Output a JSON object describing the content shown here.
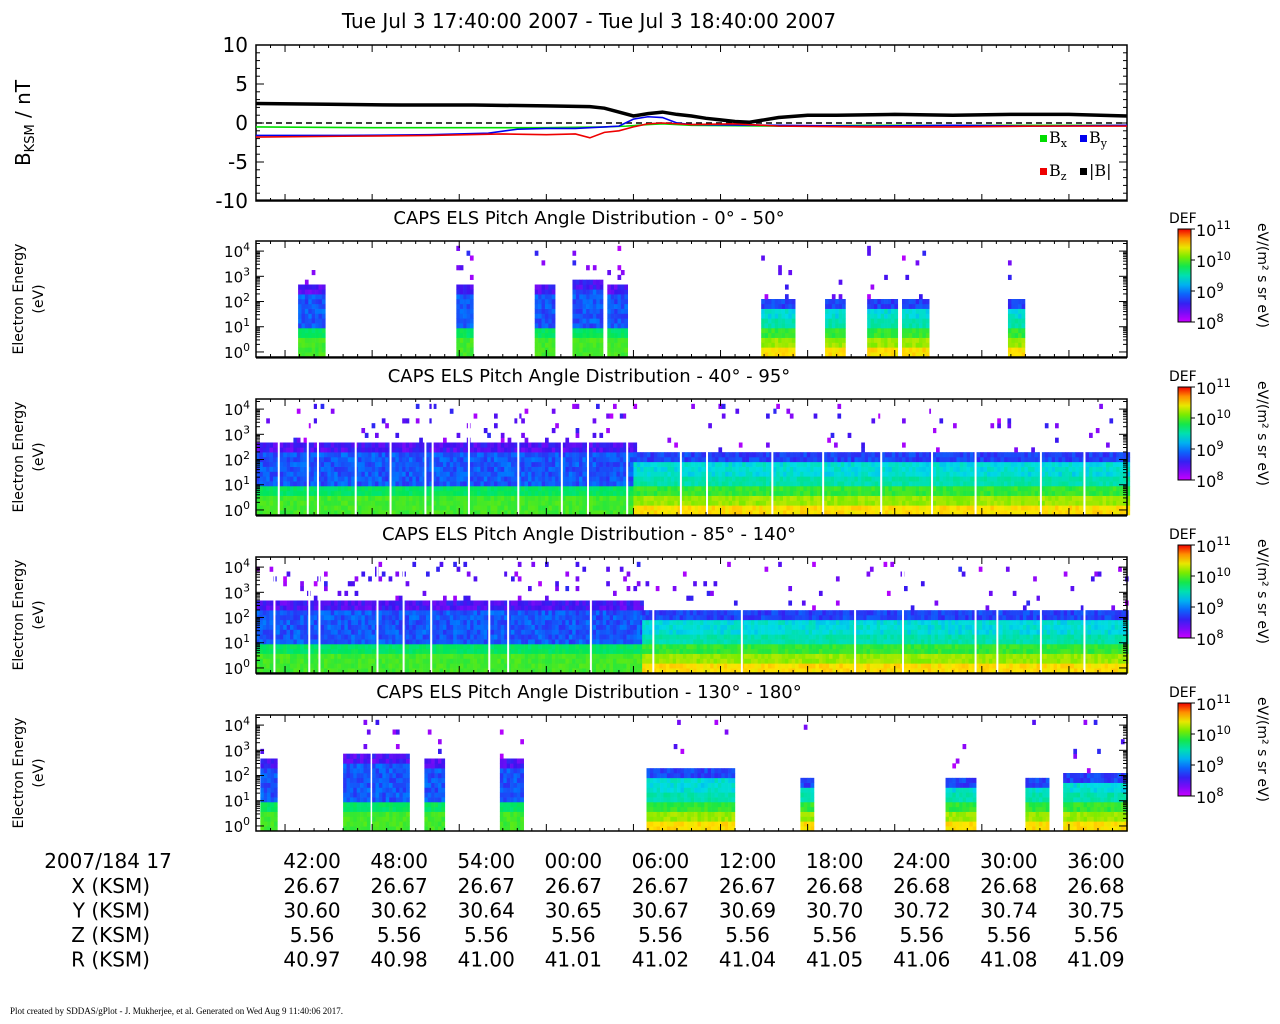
{
  "chart_data": {
    "type": "multi-panel",
    "title": "Tue Jul 3 17:40:00 2007 - Tue Jul 3 18:40:00 2007",
    "time_axis": {
      "label": "2007/184 17",
      "ticks": [
        "42:00",
        "48:00",
        "54:00",
        "00:00",
        "06:00",
        "12:00",
        "18:00",
        "24:00",
        "30:00",
        "36:00"
      ],
      "tick_minutes": [
        2,
        8,
        14,
        20,
        26,
        32,
        38,
        44,
        50,
        56
      ],
      "range_minutes": [
        0,
        60
      ]
    },
    "ephemeris": [
      {
        "label": "X (KSM)",
        "values": [
          "26.67",
          "26.67",
          "26.67",
          "26.67",
          "26.67",
          "26.67",
          "26.68",
          "26.68",
          "26.68",
          "26.68"
        ]
      },
      {
        "label": "Y (KSM)",
        "values": [
          "30.60",
          "30.62",
          "30.64",
          "30.65",
          "30.67",
          "30.69",
          "30.70",
          "30.72",
          "30.74",
          "30.75"
        ]
      },
      {
        "label": "Z (KSM)",
        "values": [
          "5.56",
          "5.56",
          "5.56",
          "5.56",
          "5.56",
          "5.56",
          "5.56",
          "5.56",
          "5.56",
          "5.56"
        ]
      },
      {
        "label": "R (KSM)",
        "values": [
          "40.97",
          "40.98",
          "41.00",
          "41.01",
          "41.02",
          "41.04",
          "41.05",
          "41.06",
          "41.08",
          "41.09"
        ]
      }
    ],
    "mag": {
      "type": "line",
      "ylabel_main": "B",
      "ylabel_sub": "KSM",
      "ylabel_unit": " / nT",
      "ylim": [
        -10,
        10
      ],
      "yticks": [
        10,
        5,
        0,
        -5,
        -10
      ],
      "zero_line": "dashed",
      "legend": [
        {
          "key": "Bx",
          "main": "B",
          "sub": "x"
        },
        {
          "key": "By",
          "main": "B",
          "sub": "y"
        },
        {
          "key": "Bz",
          "main": "B",
          "sub": "z"
        },
        {
          "key": "Bmag",
          "main": "|B|",
          "sub": ""
        }
      ],
      "series": [
        {
          "name": "Bx",
          "color": "#00dd00",
          "x": [
            0,
            8,
            14,
            20,
            24,
            25.5,
            27,
            28,
            30,
            36,
            42,
            48,
            54,
            60
          ],
          "y": [
            -0.5,
            -0.6,
            -0.6,
            -0.6,
            -0.5,
            -0.4,
            -0.2,
            -0.1,
            -0.3,
            -0.4,
            -0.3,
            -0.3,
            -0.3,
            -0.3
          ]
        },
        {
          "name": "By",
          "color": "#0000ee",
          "x": [
            0,
            6,
            12,
            16,
            18,
            20,
            22,
            24,
            25,
            26,
            27,
            28,
            29,
            30,
            36,
            42,
            48,
            54,
            60
          ],
          "y": [
            -1.6,
            -1.6,
            -1.5,
            -1.3,
            -0.8,
            -0.7,
            -0.7,
            -0.5,
            -0.4,
            0.5,
            0.8,
            0.7,
            0,
            -0.2,
            -0.3,
            -0.4,
            -0.3,
            -0.4,
            -0.3
          ]
        },
        {
          "name": "Bz",
          "color": "#ee0000",
          "x": [
            0,
            6,
            12,
            17,
            20,
            22,
            23,
            24,
            25,
            26,
            27,
            28,
            30,
            33,
            36,
            42,
            48,
            54,
            60
          ],
          "y": [
            -1.8,
            -1.7,
            -1.6,
            -1.4,
            -1.5,
            -1.4,
            -1.9,
            -1.2,
            -1.0,
            -0.5,
            -0.1,
            0,
            -0.2,
            -0.1,
            -0.4,
            -0.5,
            -0.5,
            -0.4,
            -0.4
          ]
        },
        {
          "name": "|B|",
          "color": "#000000",
          "x": [
            0,
            5,
            10,
            15,
            20,
            23,
            24,
            25,
            26,
            27,
            28,
            29,
            30,
            31,
            32,
            33,
            34,
            36,
            38,
            40,
            44,
            48,
            52,
            56,
            60
          ],
          "y": [
            2.5,
            2.4,
            2.3,
            2.3,
            2.2,
            2.1,
            1.9,
            1.4,
            0.9,
            1.2,
            1.4,
            1.1,
            0.9,
            0.6,
            0.4,
            0.2,
            0.1,
            0.7,
            1.0,
            1.0,
            1.1,
            1.0,
            1.1,
            1.1,
            0.9
          ]
        }
      ]
    },
    "colorbar": {
      "label": "DEF",
      "unit": "eV/(m² s sr eV)",
      "ticks": [
        {
          "base": "10",
          "exp": "11"
        },
        {
          "base": "10",
          "exp": "10"
        },
        {
          "base": "10",
          "exp": "9"
        },
        {
          "base": "10",
          "exp": "8"
        }
      ],
      "log_range": [
        8,
        11
      ]
    },
    "els_panels": [
      {
        "title": "CAPS ELS Pitch Angle Distribution - 0° - 50°",
        "ylabel1": "Electron Energy",
        "ylabel2": "(eV)",
        "yticks": [
          {
            "base": "10",
            "exp": "4"
          },
          {
            "base": "10",
            "exp": "3"
          },
          {
            "base": "10",
            "exp": "2"
          },
          {
            "base": "10",
            "exp": "1"
          },
          {
            "base": "10",
            "exp": "0"
          }
        ],
        "ylim_log": [
          -0.2,
          4.4
        ],
        "blocks": [
          {
            "t0": 2.9,
            "t1": 4.7,
            "top": 2.7,
            "kind": "high"
          },
          {
            "t0": 13.8,
            "t1": 14.8,
            "top": 2.6,
            "kind": "high"
          },
          {
            "t0": 19.2,
            "t1": 20.6,
            "top": 2.7,
            "kind": "high"
          },
          {
            "t0": 21.8,
            "t1": 23.8,
            "top": 2.8,
            "kind": "high"
          },
          {
            "t0": 24.2,
            "t1": 25.5,
            "top": 2.6,
            "kind": "high"
          },
          {
            "t0": 34.8,
            "t1": 37.0,
            "top": 2.1,
            "kind": "low"
          },
          {
            "t0": 39.2,
            "t1": 40.6,
            "top": 2.1,
            "kind": "low"
          },
          {
            "t0": 42.1,
            "t1": 44.2,
            "top": 2.1,
            "kind": "low"
          },
          {
            "t0": 44.5,
            "t1": 46.2,
            "top": 2.1,
            "kind": "low"
          },
          {
            "t0": 51.8,
            "t1": 52.8,
            "top": 2.1,
            "kind": "low"
          }
        ],
        "gaps": []
      },
      {
        "title": "CAPS ELS Pitch Angle Distribution - 40° - 95°",
        "ylabel1": "Electron Energy",
        "ylabel2": "(eV)",
        "yticks": [
          {
            "base": "10",
            "exp": "4"
          },
          {
            "base": "10",
            "exp": "3"
          },
          {
            "base": "10",
            "exp": "2"
          },
          {
            "base": "10",
            "exp": "1"
          },
          {
            "base": "10",
            "exp": "0"
          }
        ],
        "ylim_log": [
          -0.2,
          4.4
        ],
        "blocks": [
          {
            "t0": 0,
            "t1": 26.0,
            "top": 2.6,
            "kind": "high"
          },
          {
            "t0": 26.0,
            "t1": 60,
            "top": 2.2,
            "kind": "low"
          }
        ],
        "gaps": [
          1.5,
          3.5,
          4.2,
          6.8,
          9.2,
          11.6,
          12.1,
          14.6,
          18.0,
          21.0,
          22.8,
          25.5,
          29.2,
          31.0,
          35.5,
          39.0,
          43.0,
          46.5,
          49.5,
          54.0,
          57.0
        ]
      },
      {
        "title": "CAPS ELS Pitch Angle Distribution - 85° - 140°",
        "ylabel1": "Electron Energy",
        "ylabel2": "(eV)",
        "yticks": [
          {
            "base": "10",
            "exp": "4"
          },
          {
            "base": "10",
            "exp": "3"
          },
          {
            "base": "10",
            "exp": "2"
          },
          {
            "base": "10",
            "exp": "1"
          },
          {
            "base": "10",
            "exp": "0"
          }
        ],
        "ylim_log": [
          -0.2,
          4.4
        ],
        "blocks": [
          {
            "t0": 0,
            "t1": 26.6,
            "top": 2.6,
            "kind": "high"
          },
          {
            "t0": 26.6,
            "t1": 60,
            "top": 2.2,
            "kind": "low"
          }
        ],
        "gaps": [
          1.2,
          3.6,
          4.3,
          8.3,
          10.1,
          12.0,
          16.0,
          17.3,
          23.0,
          27.3,
          33.4,
          41.2,
          44.5,
          49.5,
          51.0,
          54.0,
          57.0
        ]
      },
      {
        "title": "CAPS ELS Pitch Angle Distribution - 130° - 180°",
        "ylabel1": "Electron Energy",
        "ylabel2": "(eV)",
        "yticks": [
          {
            "base": "10",
            "exp": "4"
          },
          {
            "base": "10",
            "exp": "3"
          },
          {
            "base": "10",
            "exp": "2"
          },
          {
            "base": "10",
            "exp": "1"
          },
          {
            "base": "10",
            "exp": "0"
          }
        ],
        "ylim_log": [
          -0.2,
          4.4
        ],
        "blocks": [
          {
            "t0": 0.3,
            "t1": 1.3,
            "top": 2.7,
            "kind": "high"
          },
          {
            "t0": 6.0,
            "t1": 7.8,
            "top": 2.8,
            "kind": "high"
          },
          {
            "t0": 8.0,
            "t1": 10.4,
            "top": 2.9,
            "kind": "high"
          },
          {
            "t0": 11.6,
            "t1": 13.0,
            "top": 2.7,
            "kind": "high"
          },
          {
            "t0": 16.8,
            "t1": 18.4,
            "top": 2.7,
            "kind": "high"
          },
          {
            "t0": 26.9,
            "t1": 32.8,
            "top": 2.3,
            "kind": "low"
          },
          {
            "t0": 37.5,
            "t1": 38.4,
            "top": 1.9,
            "kind": "low"
          },
          {
            "t0": 47.5,
            "t1": 49.6,
            "top": 1.9,
            "kind": "low"
          },
          {
            "t0": 53.0,
            "t1": 54.6,
            "top": 1.9,
            "kind": "low"
          },
          {
            "t0": 55.6,
            "t1": 60.0,
            "top": 2.1,
            "kind": "low"
          }
        ],
        "gaps": [
          2.0,
          45.0
        ]
      }
    ]
  },
  "footer": "Plot created by SDDAS/gPlot - J. Mukherjee, et al.  Generated on Wed Aug 9 11:40:06 2017."
}
